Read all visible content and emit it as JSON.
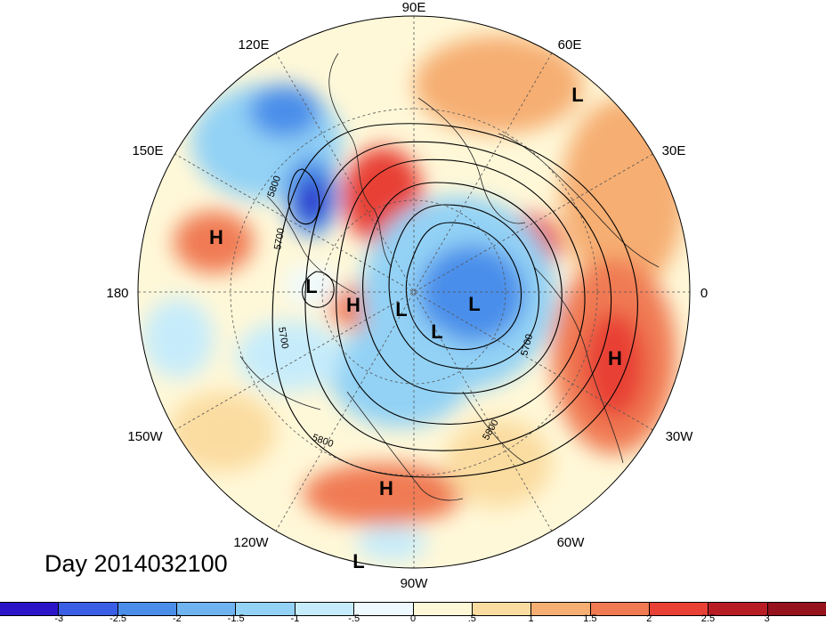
{
  "map": {
    "longitude_labels": [
      "90E",
      "60E",
      "30E",
      "0",
      "30W",
      "60W",
      "90W",
      "120W",
      "150W",
      "180",
      "150E",
      "120E"
    ],
    "contour_labels": [
      "5800",
      "5700",
      "5700",
      "5700",
      "5800",
      "5800"
    ],
    "centers": [
      "L",
      "H",
      "L",
      "H",
      "L",
      "L",
      "L",
      "H",
      "H",
      "L"
    ]
  },
  "day_label": "Day 2014032100",
  "colorbar": {
    "ticks": [
      "-3",
      "-2.5",
      "-2",
      "-1.5",
      "-1",
      "-.5",
      "0",
      ".5",
      "1",
      "1.5",
      "2",
      "2.5",
      "3"
    ],
    "colors": [
      "#2a16c8",
      "#3a5fe6",
      "#4a8eea",
      "#6fb3f0",
      "#93d2f5",
      "#c6ecfb",
      "#eefaff",
      "#fff8d8",
      "#fbdca0",
      "#f6ae72",
      "#f07a52",
      "#e84035",
      "#b81d24",
      "#96121c"
    ]
  }
}
